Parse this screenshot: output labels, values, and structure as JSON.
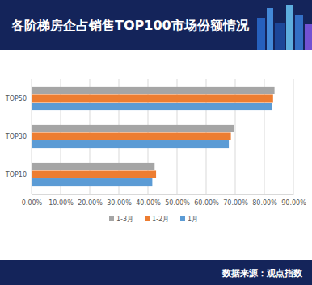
{
  "chart_data": {
    "type": "bar",
    "title": "各阶梯房企占销售TOP100市场份额情况",
    "annotations": [
      "数据来源：观点指数"
    ],
    "orientation": "horizontal",
    "categories": [
      "TOP50",
      "TOP30",
      "TOP10"
    ],
    "series": [
      {
        "name": "1-3月",
        "color": "#a5a5a5",
        "values": [
          83.5,
          69.5,
          42.3
        ]
      },
      {
        "name": "1-2月",
        "color": "#ed7d31",
        "values": [
          83.0,
          68.5,
          42.8
        ]
      },
      {
        "name": "1月",
        "color": "#5b9bd5",
        "values": [
          82.5,
          67.8,
          41.5
        ]
      }
    ],
    "xlim": [
      0,
      90
    ],
    "xticks": [
      {
        "value": 0,
        "label": "0.00%"
      },
      {
        "value": 10,
        "label": "10.00%"
      },
      {
        "value": 20,
        "label": "20.00%"
      },
      {
        "value": 30,
        "label": "30.00%"
      },
      {
        "value": 40,
        "label": "40.00%"
      },
      {
        "value": 50,
        "label": "50.00%"
      },
      {
        "value": 60,
        "label": "60.00%"
      },
      {
        "value": 70,
        "label": "70.00%"
      },
      {
        "value": 80,
        "label": "80.00%"
      },
      {
        "value": 90,
        "label": "90.00%"
      }
    ],
    "grid": true,
    "legend": "bottom"
  }
}
